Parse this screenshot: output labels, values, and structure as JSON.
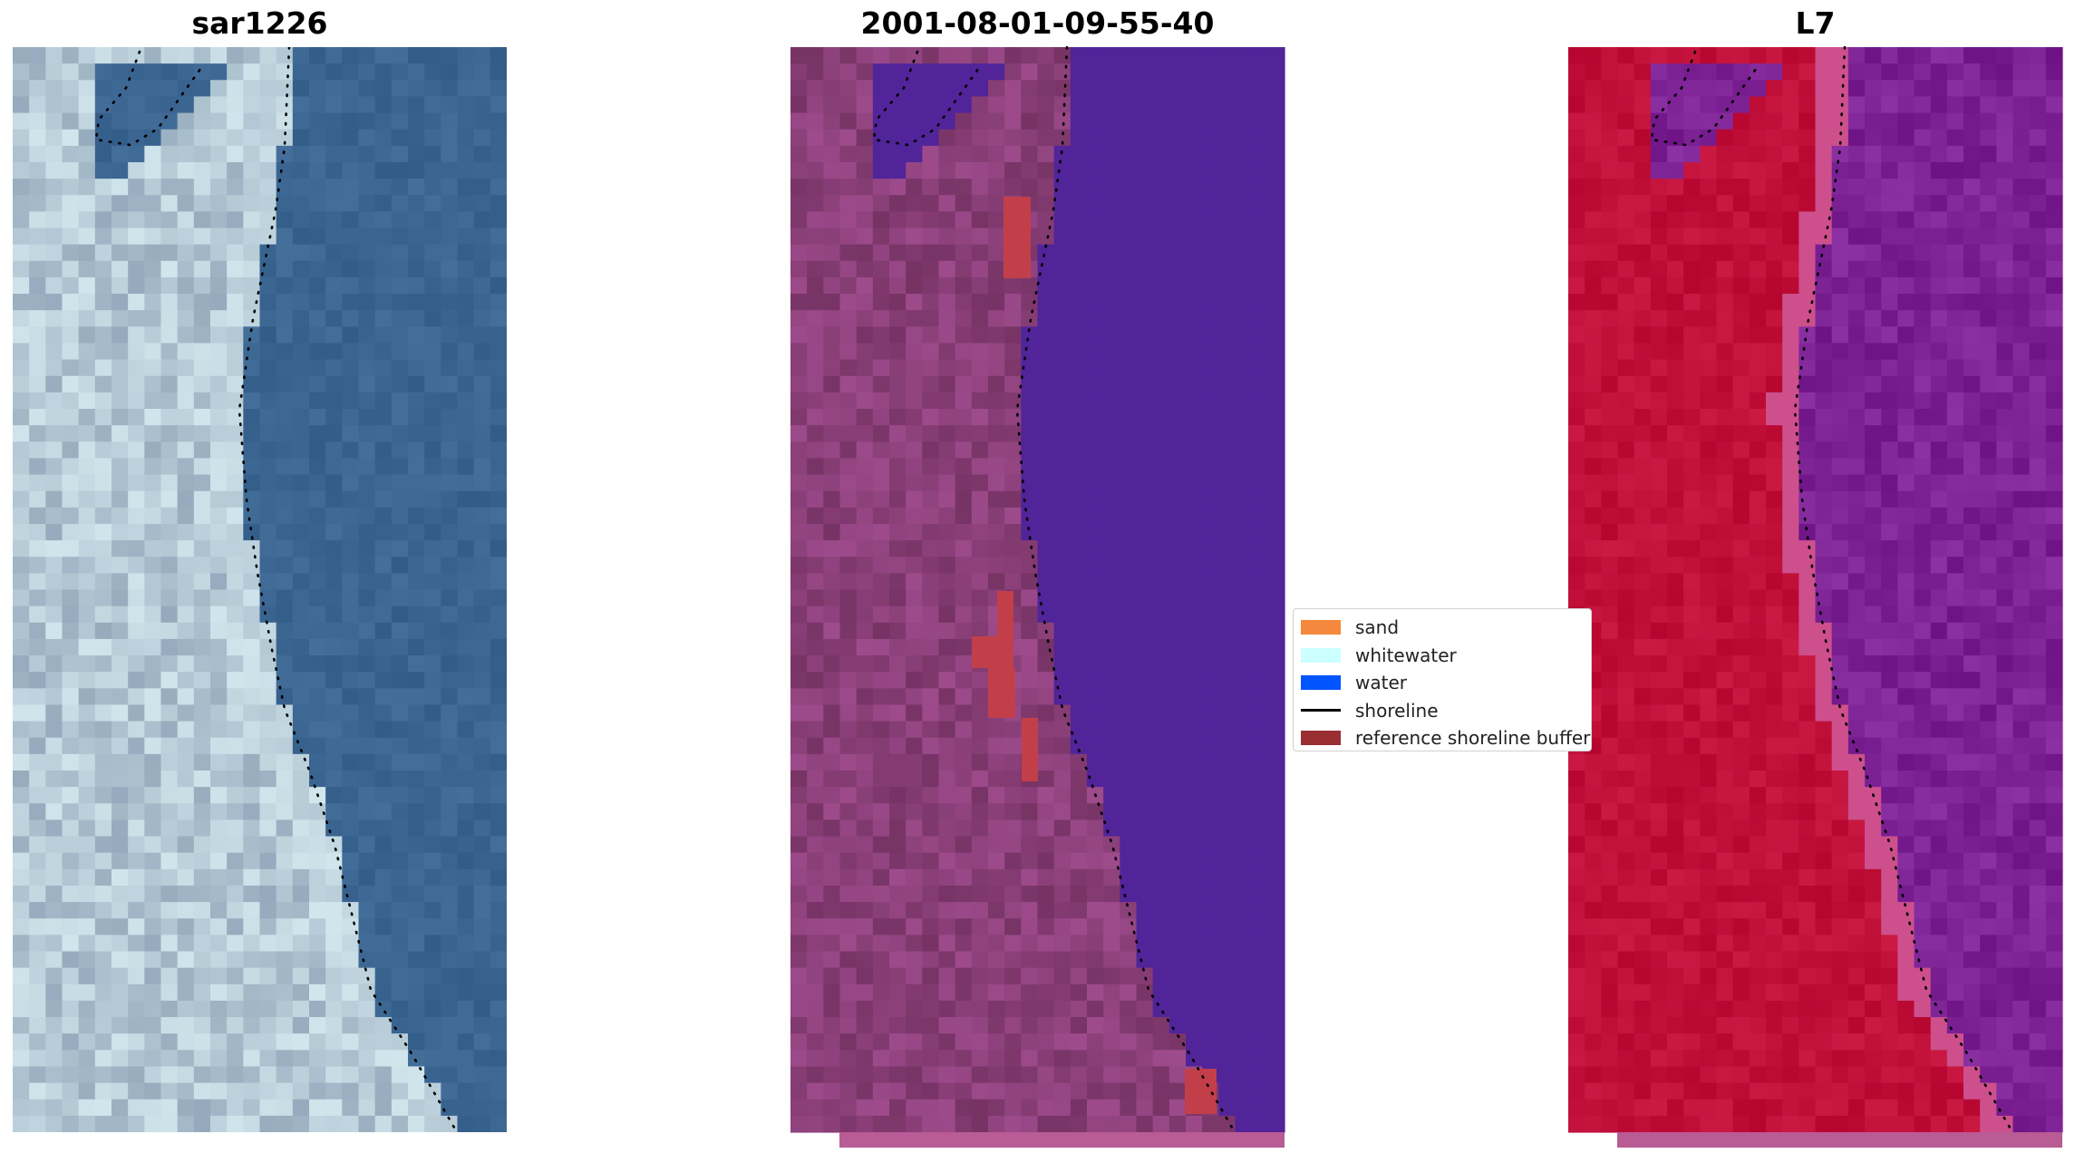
{
  "panels": [
    {
      "title": "sar1226"
    },
    {
      "title": "2001-08-01-09-55-40"
    },
    {
      "title": "L7"
    }
  ],
  "legend": {
    "items": [
      {
        "label": "sand",
        "type": "patch",
        "color": "#f4883c"
      },
      {
        "label": "whitewater",
        "type": "patch",
        "color": "#ccffff"
      },
      {
        "label": "water",
        "type": "patch",
        "color": "#0055ff"
      },
      {
        "label": "shoreline",
        "type": "line",
        "color": "#000000"
      },
      {
        "label": "reference shoreline buffer",
        "type": "patch",
        "color": "#992e33"
      }
    ]
  },
  "colors": {
    "rgb_water": "#3c6692",
    "rgb_land": "#9fb4c4",
    "classified_water": "#51249a",
    "classified_land": "#8a3f78",
    "classified_buffer": "#c23f4a",
    "mndwi_land": "#c0103a",
    "mndwi_water": "#7c2295",
    "strip": "#b95b94"
  }
}
